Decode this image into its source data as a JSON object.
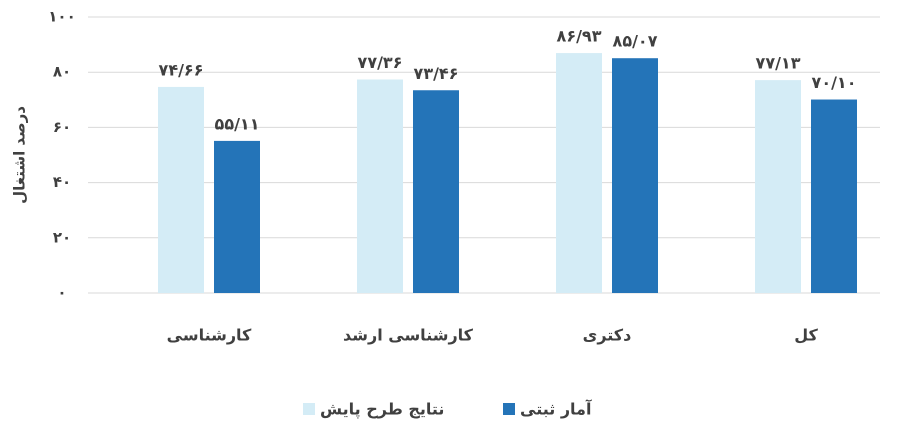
{
  "chart_data": {
    "type": "bar",
    "y_label": "درصد اشتغال",
    "categories": [
      "کارشناسی",
      "کارشناسی ارشد",
      "دکتری",
      "کل"
    ],
    "series": [
      {
        "name": "نتایج طرح پایش",
        "color": "#d4ecf6",
        "values": [
          74.66,
          77.36,
          86.93,
          77.13
        ],
        "value_labels": [
          "۷۴/۶۶",
          "۷۷/۳۶",
          "۸۶/۹۳",
          "۷۷/۱۳"
        ]
      },
      {
        "name": "آمار ثبتی",
        "color": "#2474b8",
        "values": [
          55.11,
          73.46,
          85.07,
          70.1
        ],
        "value_labels": [
          "۵۵/۱۱",
          "۷۳/۴۶",
          "۸۵/۰۷",
          "۷۰/۱۰"
        ]
      }
    ],
    "ylim": [
      0,
      100
    ],
    "yticks": [
      {
        "value": 0,
        "label": "۰"
      },
      {
        "value": 20,
        "label": "۲۰"
      },
      {
        "value": 40,
        "label": "۴۰"
      },
      {
        "value": 60,
        "label": "۶۰"
      },
      {
        "value": 80,
        "label": "۸۰"
      },
      {
        "value": 100,
        "label": "۱۰۰"
      }
    ],
    "grid": true,
    "legend": "bottom"
  }
}
